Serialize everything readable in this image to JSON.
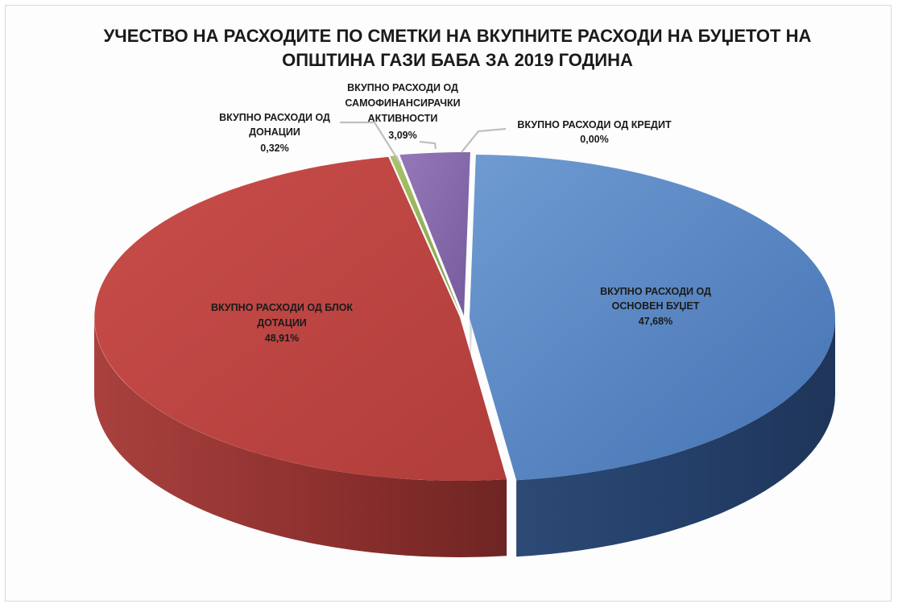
{
  "chart_data": {
    "type": "pie",
    "style": "3d-exploded",
    "title_lines": [
      "УЧЕСТВО НА РАСХОДИТЕ ПО СМЕТКИ НА ВКУПНИТЕ РАСХОДИ НА БУЏЕТОТ НА",
      "ОПШТИНА ГАЗИ БАБА ЗА 2019 ГОДИНА"
    ],
    "slices": [
      {
        "label_lines": [
          "ВКУПНО РАСХОДИ ОД",
          "ОСНОВЕН БУЏЕТ"
        ],
        "value": 47.68,
        "value_label": "47,68%",
        "color": "#4f81bd"
      },
      {
        "label_lines": [
          "ВКУПНО РАСХОДИ ОД БЛОК",
          "ДОТАЦИИ"
        ],
        "value": 48.91,
        "value_label": "48,91%",
        "color": "#c0504d"
      },
      {
        "label_lines": [
          "ВКУПНО РАСХОДИ ОД",
          "ДОНАЦИИ"
        ],
        "value": 0.32,
        "value_label": "0,32%",
        "color": "#9bbb59"
      },
      {
        "label_lines": [
          "ВКУПНО РАСХОДИ ОД",
          "САМОФИНАНСИРАЧКИ",
          "АКТИВНОСТИ"
        ],
        "value": 3.09,
        "value_label": "3,09%",
        "color": "#8064a2"
      },
      {
        "label_lines": [
          "ВКУПНО РАСХОДИ ОД КРЕДИТ"
        ],
        "value": 0.0,
        "value_label": "0,00%",
        "color": "#4bacc6"
      }
    ]
  }
}
